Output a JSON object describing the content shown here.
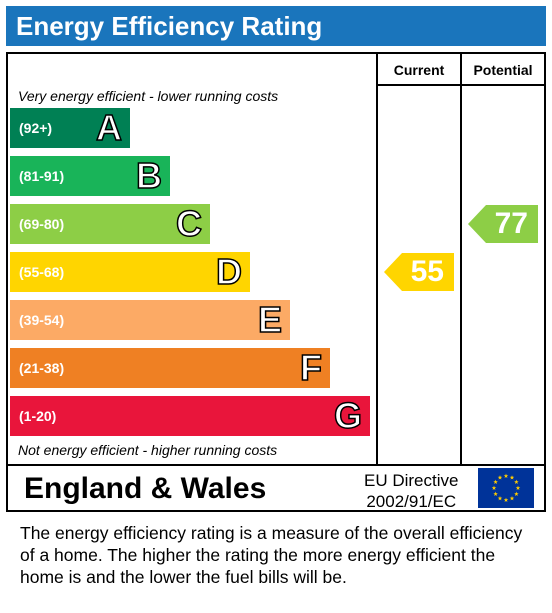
{
  "title": "Energy Efficiency Rating",
  "headers": {
    "current": "Current",
    "potential": "Potential"
  },
  "notes": {
    "top": "Very energy efficient - lower running costs",
    "bottom": "Not energy efficient - higher running costs"
  },
  "chart_data": {
    "type": "bar",
    "title": "Energy Efficiency Rating",
    "bands": [
      {
        "range": "(92+)",
        "letter": "A",
        "color": "#008054"
      },
      {
        "range": "(81-91)",
        "letter": "B",
        "color": "#19b459"
      },
      {
        "range": "(69-80)",
        "letter": "C",
        "color": "#8dce46"
      },
      {
        "range": "(55-68)",
        "letter": "D",
        "color": "#ffd500"
      },
      {
        "range": "(39-54)",
        "letter": "E",
        "color": "#fcaa65"
      },
      {
        "range": "(21-38)",
        "letter": "F",
        "color": "#ef8023"
      },
      {
        "range": "(1-20)",
        "letter": "G",
        "color": "#e9153b"
      }
    ],
    "ratings": {
      "current": {
        "value": "55",
        "band": "D",
        "color": "#ffd500"
      },
      "potential": {
        "value": "77",
        "band": "C",
        "color": "#8dce46"
      }
    }
  },
  "footer": {
    "region": "England & Wales",
    "directive_line1": "EU Directive",
    "directive_line2": "2002/91/EC",
    "flag_icon": "eu-flag-icon"
  },
  "description": "The energy efficiency rating is a measure of the overall efficiency of a home.  The higher the rating the more energy efficient the home is and the lower the fuel bills will be."
}
